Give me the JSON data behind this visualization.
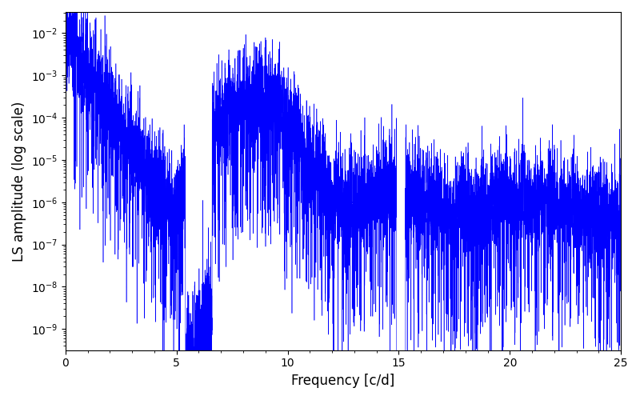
{
  "title": "",
  "xlabel": "Frequency [c/d]",
  "ylabel": "LS amplitude (log scale)",
  "line_color": "#0000ff",
  "line_width": 0.4,
  "xlim": [
    0,
    25
  ],
  "ylim_log_min": -9.5,
  "ylim_log_max": -1.5,
  "yscale": "log",
  "figsize": [
    8.0,
    5.0
  ],
  "dpi": 100,
  "background_color": "#ffffff",
  "n_points": 8000,
  "freq_max": 25.0,
  "seed": 77
}
